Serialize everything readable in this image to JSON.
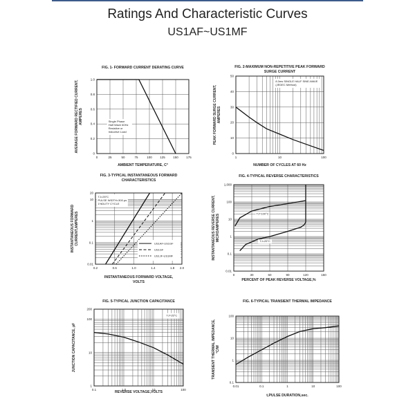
{
  "header": {
    "title": "Ratings And  Characteristic Curves",
    "subtitle": "US1AF~US1MF",
    "rule_color": "#3b5a8a"
  },
  "chart_data": [
    {
      "type": "line",
      "title": [
        "FIG. 1- FORWARD CURRENT DERATING CURVE"
      ],
      "xlabel": [
        "AMBIENT TEMPERATURE,  C°"
      ],
      "ylabel": [
        "AVERAGE FORWARD RECTIFIED CURRENT,",
        "AMPERES"
      ],
      "xscale": "linear",
      "yscale": "linear",
      "xlim": [
        0,
        175
      ],
      "ylim": [
        0,
        1.0
      ],
      "xticks": [
        0,
        25,
        50,
        75,
        100,
        125,
        150,
        175
      ],
      "xticklabels": [
        "0",
        "25",
        "50",
        "75",
        "100",
        "125",
        "150",
        "175"
      ],
      "yticks": [
        0,
        0.2,
        0.4,
        0.6,
        0.8,
        1.0
      ],
      "yticklabels": [
        "0",
        "0.2",
        "0.4",
        "0.6",
        "0.8",
        "1.0"
      ],
      "grid": true,
      "annotation": [
        "Single Phase",
        "Half Wave 60Hz",
        "Resistive or",
        "Inductive Load"
      ],
      "annotation_at": [
        22,
        0.42
      ],
      "series": [
        {
          "x": [
            0,
            80,
            150
          ],
          "y": [
            1.0,
            1.0,
            0
          ],
          "style": "solid"
        }
      ]
    },
    {
      "type": "line",
      "title": [
        "FIG. 2-MAXIMUM NON-REPETITIVE PEAK FORWARD",
        "SURGE CURRENT"
      ],
      "xlabel": [
        "NUMBER OF CYCLES AT 60 Hz"
      ],
      "ylabel": [
        "PEAK FORWARD SURGE CURRENT,",
        "AMPERES"
      ],
      "xscale": "log",
      "yscale": "linear",
      "xlim": [
        1,
        100
      ],
      "ylim": [
        0,
        50
      ],
      "xticks": [
        1,
        10,
        100
      ],
      "xticklabels": [
        "1",
        "10",
        "100"
      ],
      "yticks": [
        0,
        10,
        20,
        30,
        40,
        50
      ],
      "yticklabels": [
        "0",
        "10",
        "20",
        "30",
        "40",
        "50"
      ],
      "grid": true,
      "annotation": [
        "8.3ms SINGLE HALF SINE-WAVE",
        "(JEDEC Method)"
      ],
      "annotation_at": [
        8,
        46
      ],
      "series": [
        {
          "x": [
            1,
            2,
            3,
            5,
            10,
            20,
            50,
            100
          ],
          "y": [
            30,
            23.5,
            20,
            16,
            12.5,
            9,
            5,
            2
          ],
          "style": "solid"
        }
      ]
    },
    {
      "type": "line",
      "title": [
        "FIG. 3-TYPICAL INSTANTANEOUS FORWARD",
        "CHARACTERISTICS"
      ],
      "xlabel": [
        "INSTANTANEOUS FORWARD VOLTAGE,",
        "VOLTS"
      ],
      "ylabel": [
        "INSTANTANEOUS FORWARD",
        "CURRENT,AMPERES"
      ],
      "xscale": "linear",
      "yscale": "log",
      "xlim": [
        0.2,
        2.0
      ],
      "ylim": [
        0.01,
        20
      ],
      "xticks": [
        0.2,
        0.6,
        1.0,
        1.4,
        1.8,
        2.0
      ],
      "xticklabels": [
        "0.2",
        "0.6",
        "1.0",
        "1.4",
        "1.8",
        "2.0"
      ],
      "yticks": [
        0.01,
        0.1,
        1,
        10,
        20
      ],
      "yticklabels": [
        "0.01",
        "0.1",
        "1",
        "10",
        "20"
      ],
      "grid": true,
      "annotation": [
        "TJ=25°C",
        "PULSE WIDTH=300 µs",
        "1%DUTY CYCLE"
      ],
      "annotation_at": [
        0.25,
        12
      ],
      "legend": "bottom-right",
      "series": [
        {
          "name": "US1AF-US1GF",
          "x": [
            0.41,
            1.33
          ],
          "y": [
            0.01,
            20
          ],
          "style": "solid"
        },
        {
          "name": "US1GF",
          "x": [
            0.55,
            1.65
          ],
          "y": [
            0.01,
            20
          ],
          "style": "dashed"
        },
        {
          "name": "US1JF-US1MF",
          "x": [
            0.63,
            2.0
          ],
          "y": [
            0.01,
            20
          ],
          "style": "dotted"
        }
      ]
    },
    {
      "type": "line",
      "title": [
        "FIG. 4-TYPICAL REVERSE CHARACTERISTICS"
      ],
      "xlabel": [
        "PERCENT OF PEAK REVERSE VOLTAGE,%"
      ],
      "ylabel": [
        "INSTANTANEOUS REVERSE CURRENT,",
        "MICROAMPERES"
      ],
      "xscale": "linear",
      "yscale": "log",
      "xlim": [
        0,
        150
      ],
      "ylim": [
        0.01,
        1000
      ],
      "xticks": [
        0,
        30,
        60,
        90,
        120,
        150
      ],
      "xticklabels": [
        "0",
        "30",
        "60",
        "90",
        "120",
        "150"
      ],
      "yticks": [
        0.01,
        0.1,
        1,
        10,
        100,
        1000
      ],
      "yticklabels": [
        "0.01",
        "0.1",
        "1",
        "10",
        "100",
        "1,000"
      ],
      "grid": true,
      "labels": [
        {
          "text": "TJ=100°C",
          "at": [
            48,
            18
          ]
        },
        {
          "text": "TJ=25°C",
          "at": [
            52,
            0.48
          ]
        }
      ],
      "series": [
        {
          "name": "TJ=100°C",
          "x": [
            2,
            10,
            30,
            60,
            90,
            120
          ],
          "y": [
            4,
            12,
            30,
            55,
            80,
            120
          ],
          "style": "solid"
        },
        {
          "name": "TJ=25°C",
          "x": [
            10,
            20,
            40,
            60,
            90,
            112,
            118,
            120,
            120
          ],
          "y": [
            0.15,
            0.35,
            0.7,
            1,
            2,
            3.5,
            5,
            7,
            1000
          ],
          "style": "solid"
        }
      ]
    },
    {
      "type": "line",
      "title": [
        "FIG. 5-TYPICAL JUNCTION CAPACITANCE"
      ],
      "xlabel": [
        "REVERSE VOLTAGE,VOLTS"
      ],
      "ylabel": [
        "JUNCTION CAPACITANCE, pF"
      ],
      "xscale": "log",
      "yscale": "log",
      "xlim": [
        0.1,
        100
      ],
      "ylim": [
        1,
        200
      ],
      "xticks": [
        0.1,
        1,
        10,
        100
      ],
      "xticklabels": [
        "0.1",
        "1.0",
        "10",
        "100"
      ],
      "yticks": [
        1,
        10,
        100,
        200
      ],
      "yticklabels": [
        "1",
        "10",
        "100",
        "200"
      ],
      "grid": true,
      "annotation": [
        "TJ=25°C"
      ],
      "annotation_at": [
        27,
        120
      ],
      "series": [
        {
          "x": [
            0.1,
            0.3,
            1,
            3,
            10,
            30,
            100
          ],
          "y": [
            40,
            36,
            29,
            21,
            14,
            8.5,
            4.5
          ],
          "style": "solid"
        }
      ]
    },
    {
      "type": "line",
      "title": [
        "FIG. 6-TYPICAL TRANSIENT THERMAL IMPEDANCE"
      ],
      "xlabel": [
        "t,PULSE DURATION,sec."
      ],
      "ylabel": [
        "TRANSIENT THERMAL IMPEDANCE,",
        "°C/W"
      ],
      "xscale": "log",
      "yscale": "log",
      "xlim": [
        0.01,
        100
      ],
      "ylim": [
        0.1,
        100
      ],
      "xticks": [
        0.01,
        0.1,
        1,
        10,
        100
      ],
      "xticklabels": [
        "0.01",
        "0.1",
        "1",
        "10",
        "100"
      ],
      "yticks": [
        0.1,
        1,
        10,
        100
      ],
      "yticklabels": [
        "0.1",
        "1",
        "10",
        "100"
      ],
      "grid": true,
      "series": [
        {
          "x": [
            0.01,
            0.03,
            0.1,
            0.3,
            1,
            3,
            10,
            30,
            100
          ],
          "y": [
            0.65,
            1.4,
            3,
            6,
            12,
            20,
            27,
            30,
            36
          ],
          "style": "solid"
        }
      ]
    }
  ]
}
